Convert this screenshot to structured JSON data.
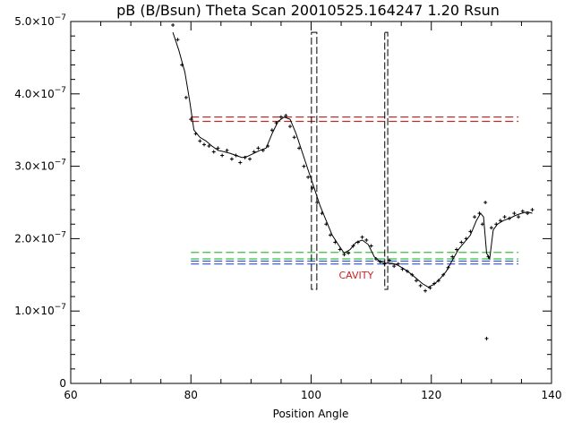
{
  "chart_data": {
    "type": "scatter",
    "title": "pB (B/Bsun) Theta Scan 20010525.164247 1.20 Rsun",
    "xlabel": "Position Angle",
    "ylabel": "",
    "xlim": [
      60,
      140
    ],
    "ylim": [
      0,
      5e-07
    ],
    "x_ticks": [
      60,
      80,
      100,
      120,
      140
    ],
    "x_tick_labels": [
      "60",
      "80",
      "100",
      "120",
      "140"
    ],
    "y_ticks": [
      0,
      1e-07,
      2e-07,
      3e-07,
      4e-07,
      5e-07
    ],
    "y_tick_labels": [
      {
        "mantissa": "0",
        "exponent": ""
      },
      {
        "mantissa": "1.0×10",
        "exponent": "−7"
      },
      {
        "mantissa": "2.0×10",
        "exponent": "−7"
      },
      {
        "mantissa": "3.0×10",
        "exponent": "−7"
      },
      {
        "mantissa": "4.0×10",
        "exponent": "−7"
      },
      {
        "mantissa": "5.0×10",
        "exponent": "−7"
      }
    ],
    "grid": false,
    "series": [
      {
        "kind": "points",
        "marker": "plus",
        "color": "#000000",
        "x": [
          77.0,
          77.8,
          78.5,
          79.2,
          80.0,
          80.8,
          81.5,
          82.2,
          83.0,
          83.8,
          84.5,
          85.2,
          86.0,
          86.8,
          87.5,
          88.2,
          89.0,
          89.8,
          90.5,
          91.2,
          92.0,
          92.8,
          93.5,
          94.2,
          95.0,
          95.8,
          96.5,
          97.2,
          98.0,
          98.8,
          99.5,
          100.2,
          101.0,
          101.8,
          102.5,
          103.2,
          104.0,
          104.8,
          105.5,
          106.2,
          107.0,
          107.8,
          108.5,
          109.2,
          110.0,
          110.8,
          111.5,
          112.2,
          113.0,
          113.8,
          114.5,
          115.2,
          116.0,
          116.8,
          117.5,
          118.2,
          119.0,
          119.8,
          120.5,
          121.2,
          122.0,
          122.8,
          123.5,
          124.2,
          125.0,
          125.8,
          126.5,
          127.2,
          128.0,
          128.5,
          129.0,
          129.5,
          130.0,
          130.8,
          131.5,
          132.2,
          133.0,
          133.8,
          134.5,
          135.2,
          136.0,
          136.8,
          129.2
        ],
        "y": [
          4.95e-07,
          4.75e-07,
          4.4e-07,
          3.95e-07,
          3.65e-07,
          3.45e-07,
          3.35e-07,
          3.3e-07,
          3.28e-07,
          3.2e-07,
          3.25e-07,
          3.15e-07,
          3.22e-07,
          3.1e-07,
          3.15e-07,
          3.05e-07,
          3.12e-07,
          3.1e-07,
          3.2e-07,
          3.25e-07,
          3.22e-07,
          3.28e-07,
          3.5e-07,
          3.6e-07,
          3.68e-07,
          3.7e-07,
          3.55e-07,
          3.4e-07,
          3.25e-07,
          3e-07,
          2.85e-07,
          2.7e-07,
          2.5e-07,
          2.35e-07,
          2.2e-07,
          2.05e-07,
          1.95e-07,
          1.85e-07,
          1.78e-07,
          1.8e-07,
          1.9e-07,
          1.95e-07,
          2.02e-07,
          1.98e-07,
          1.9e-07,
          1.72e-07,
          1.68e-07,
          1.65e-07,
          1.7e-07,
          1.62e-07,
          1.65e-07,
          1.58e-07,
          1.55e-07,
          1.5e-07,
          1.42e-07,
          1.35e-07,
          1.28e-07,
          1.32e-07,
          1.38e-07,
          1.42e-07,
          1.5e-07,
          1.6e-07,
          1.75e-07,
          1.85e-07,
          1.95e-07,
          2e-07,
          2.1e-07,
          2.3e-07,
          2.35e-07,
          2.2e-07,
          2.5e-07,
          1.75e-07,
          2.15e-07,
          2.2e-07,
          2.25e-07,
          2.3e-07,
          2.28e-07,
          2.35e-07,
          2.3e-07,
          2.38e-07,
          2.35e-07,
          2.4e-07,
          6.2e-08
        ]
      },
      {
        "kind": "line",
        "style": "solid",
        "color": "#000000",
        "x": [
          77.0,
          78.0,
          79.0,
          79.8,
          80.5,
          81.5,
          82.5,
          83.5,
          84.5,
          85.5,
          86.5,
          87.5,
          88.5,
          89.5,
          90.5,
          91.5,
          92.5,
          93.5,
          94.5,
          95.5,
          96.5,
          97.5,
          98.5,
          99.5,
          100.5,
          101.5,
          102.5,
          103.5,
          104.5,
          105.5,
          106.5,
          107.5,
          108.5,
          109.5,
          110.5,
          111.5,
          112.5,
          113.5,
          114.5,
          115.5,
          116.5,
          117.5,
          118.5,
          119.5,
          120.5,
          121.5,
          122.5,
          123.5,
          124.5,
          125.5,
          126.5,
          127.5,
          128.2,
          128.7,
          129.2,
          129.7,
          130.3,
          131.0,
          132.0,
          133.0,
          134.0,
          135.0,
          136.0,
          136.8
        ],
        "y": [
          4.85e-07,
          4.6e-07,
          4.3e-07,
          3.9e-07,
          3.5e-07,
          3.4e-07,
          3.35e-07,
          3.28e-07,
          3.22e-07,
          3.2e-07,
          3.18e-07,
          3.15e-07,
          3.12e-07,
          3.14e-07,
          3.18e-07,
          3.22e-07,
          3.25e-07,
          3.45e-07,
          3.62e-07,
          3.68e-07,
          3.65e-07,
          3.45e-07,
          3.2e-07,
          2.95e-07,
          2.7e-07,
          2.45e-07,
          2.25e-07,
          2.05e-07,
          1.92e-07,
          1.8e-07,
          1.85e-07,
          1.95e-07,
          1.98e-07,
          1.92e-07,
          1.75e-07,
          1.68e-07,
          1.66e-07,
          1.66e-07,
          1.63e-07,
          1.58e-07,
          1.52e-07,
          1.45e-07,
          1.38e-07,
          1.33e-07,
          1.37e-07,
          1.45e-07,
          1.55e-07,
          1.7e-07,
          1.85e-07,
          1.95e-07,
          2.05e-07,
          2.25e-07,
          2.35e-07,
          2.3e-07,
          1.8e-07,
          1.72e-07,
          2.12e-07,
          2.2e-07,
          2.25e-07,
          2.28e-07,
          2.32e-07,
          2.35e-07,
          2.37e-07,
          2.35e-07
        ]
      }
    ],
    "reference_lines": [
      {
        "y": 3.68e-07,
        "color": "#b03030",
        "style": "dashed"
      },
      {
        "y": 3.62e-07,
        "color": "#b03030",
        "style": "dashed"
      },
      {
        "y": 1.81e-07,
        "color": "#3bbf3b",
        "style": "dashed"
      },
      {
        "y": 1.72e-07,
        "color": "#3bbf3b",
        "style": "dashed"
      },
      {
        "y": 1.69e-07,
        "color": "#3050d0",
        "style": "dashed"
      },
      {
        "y": 1.65e-07,
        "color": "#3050d0",
        "style": "dashed"
      }
    ],
    "boundary_boxes": [
      {
        "x0": 100.2,
        "x1": 100.8,
        "y0": 1.3e-07,
        "y1": 4.85e-07
      },
      {
        "x0": 112.4,
        "x1": 112.6,
        "y0": 1.3e-07,
        "y1": 4.85e-07
      }
    ],
    "annotations": [
      {
        "text": "CAVITY",
        "x": 107.5,
        "y": 1.5e-07,
        "color": "#d02020"
      }
    ]
  }
}
